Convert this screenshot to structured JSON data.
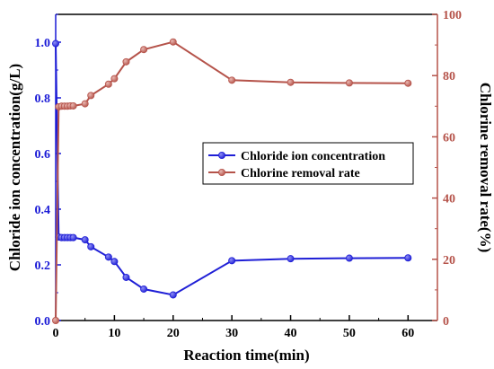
{
  "chart_data": {
    "type": "line",
    "xlabel": "Reaction time(min)",
    "ylabel_left": "Chloride ion concentration(g/L)",
    "ylabel_right": "Chlorine removal rate(%)",
    "xlim": [
      0,
      65
    ],
    "ylim_left": [
      0,
      1.1
    ],
    "ylim_right": [
      0,
      100
    ],
    "x_ticks": [
      0,
      10,
      20,
      30,
      40,
      50,
      60
    ],
    "y_left_ticks": [
      0.0,
      0.2,
      0.4,
      0.6,
      0.8,
      1.0
    ],
    "y_right_ticks": [
      0,
      20,
      40,
      60,
      80,
      100
    ],
    "y_left_tick_labels": [
      "0.0",
      "0.2",
      "0.4",
      "0.6",
      "0.8",
      "1.0"
    ],
    "legend_position": "center-right",
    "grid": false,
    "colors": {
      "left_axis": "#1a1ad6",
      "right_axis": "#b5534a",
      "chloride": "#1f1fd6",
      "removal": "#b5534a"
    },
    "series": [
      {
        "name": "Chloride ion concentration",
        "axis": "left",
        "x": [
          0,
          0.5,
          1,
          1.5,
          2,
          2.5,
          3,
          5,
          6,
          9,
          10,
          12,
          15,
          20,
          30,
          40,
          50,
          60
        ],
        "values": [
          0.995,
          0.3,
          0.298,
          0.298,
          0.298,
          0.298,
          0.298,
          0.29,
          0.265,
          0.228,
          0.212,
          0.155,
          0.113,
          0.092,
          0.215,
          0.222,
          0.224,
          0.225
        ]
      },
      {
        "name": "Chlorine removal rate",
        "axis": "right",
        "x": [
          0,
          0.5,
          1,
          1.5,
          2,
          2.5,
          3,
          5,
          6,
          9,
          10,
          12,
          15,
          20,
          30,
          40,
          50,
          60
        ],
        "values": [
          0,
          69.8,
          70,
          70,
          70,
          70.1,
          70.1,
          70.8,
          73.5,
          77.2,
          79,
          84.5,
          88.5,
          91,
          78.5,
          77.8,
          77.6,
          77.5
        ]
      }
    ]
  }
}
